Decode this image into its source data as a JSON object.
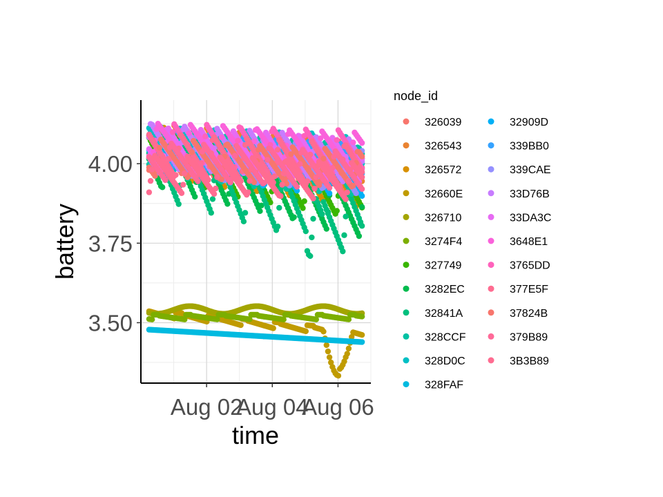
{
  "chart_data": {
    "type": "scatter",
    "xlabel": "time",
    "ylabel": "battery",
    "x_ticks": [
      "Aug 02",
      "Aug 04",
      "Aug 06"
    ],
    "y_ticks": [
      "3.50",
      "3.75",
      "4.00"
    ],
    "xlim": [
      "2021-07-31",
      "2021-08-07"
    ],
    "ylim": [
      3.31,
      4.2
    ],
    "grid": true,
    "legend_title": "node_id",
    "legend_position": "right",
    "series": [
      {
        "name": "326039",
        "color": "#F8766D",
        "base": 4.05,
        "amp": 0.07,
        "phase": 0.0,
        "slope": -0.012
      },
      {
        "name": "326543",
        "color": "#EA8331",
        "base": 4.06,
        "amp": 0.07,
        "phase": 0.4,
        "slope": -0.01
      },
      {
        "name": "326572",
        "color": "#D89000",
        "base": 4.04,
        "amp": 0.08,
        "phase": 0.7,
        "slope": -0.015
      },
      {
        "name": "32660E",
        "color": "#C09B00",
        "base": 3.52,
        "amp": 0.02,
        "phase": 0.2,
        "slope": -0.01,
        "dip": true
      },
      {
        "name": "326710",
        "color": "#A3A500",
        "base": 3.53,
        "amp": 0.015,
        "phase": 0.5,
        "slope": 0.0,
        "flat": 3.54
      },
      {
        "name": "3274F4",
        "color": "#7CAE00",
        "base": 3.51,
        "amp": 0.015,
        "phase": 0.9,
        "slope": 0.0
      },
      {
        "name": "327749",
        "color": "#39B600",
        "base": 4.03,
        "amp": 0.08,
        "phase": 0.3,
        "slope": -0.02
      },
      {
        "name": "3282EC",
        "color": "#00BB4E",
        "base": 4.02,
        "amp": 0.09,
        "phase": 0.6,
        "slope": -0.025
      },
      {
        "name": "32841A",
        "color": "#00BF7D",
        "base": 4.0,
        "amp": 0.1,
        "phase": 0.1,
        "slope": -0.03
      },
      {
        "name": "328CCF",
        "color": "#00C1A3",
        "base": 4.04,
        "amp": 0.08,
        "phase": 0.8,
        "slope": -0.01
      },
      {
        "name": "328D0C",
        "color": "#00BFC4",
        "base": 4.05,
        "amp": 0.07,
        "phase": 0.2,
        "slope": -0.005
      },
      {
        "name": "328FAF",
        "color": "#00BAE0",
        "base": 3.47,
        "amp": 0.0,
        "phase": 0.0,
        "slope": -0.005,
        "flat": 3.475
      },
      {
        "name": "32909D",
        "color": "#00B0F6",
        "base": 4.03,
        "amp": 0.07,
        "phase": 0.5,
        "slope": -0.01
      },
      {
        "name": "339BB0",
        "color": "#35A2FF",
        "base": 4.05,
        "amp": 0.06,
        "phase": 0.3,
        "slope": -0.008
      },
      {
        "name": "339CAE",
        "color": "#9590FF",
        "base": 4.04,
        "amp": 0.07,
        "phase": 0.7,
        "slope": -0.01
      },
      {
        "name": "33D76B",
        "color": "#C77CFF",
        "base": 4.06,
        "amp": 0.07,
        "phase": 0.1,
        "slope": -0.008
      },
      {
        "name": "33DA3C",
        "color": "#E76BF3",
        "base": 4.05,
        "amp": 0.07,
        "phase": 0.6,
        "slope": -0.006
      },
      {
        "name": "3648E1",
        "color": "#FA62DB",
        "base": 4.07,
        "amp": 0.06,
        "phase": 0.9,
        "slope": -0.005
      },
      {
        "name": "3765DD",
        "color": "#FF62BC",
        "base": 4.06,
        "amp": 0.07,
        "phase": 0.4,
        "slope": -0.004
      },
      {
        "name": "377E5F",
        "color": "#FF6C91",
        "base": 4.03,
        "amp": 0.07,
        "phase": 0.2,
        "slope": -0.006
      },
      {
        "name": "37824B",
        "color": "#F8766D",
        "base": 4.02,
        "amp": 0.06,
        "phase": 0.8,
        "slope": -0.006
      },
      {
        "name": "379B89",
        "color": "#FF6A98",
        "base": 4.01,
        "amp": 0.06,
        "phase": 0.5,
        "slope": -0.005
      },
      {
        "name": "3B3B89",
        "color": "#FF6C91",
        "base": 3.97,
        "amp": 0.06,
        "phase": 0.0,
        "slope": -0.004
      }
    ]
  }
}
